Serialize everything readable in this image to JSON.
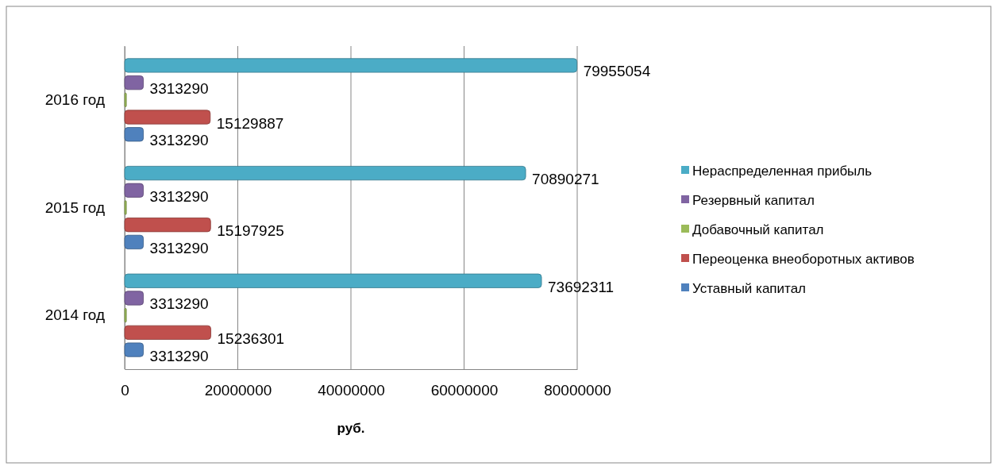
{
  "chart_data": {
    "type": "bar",
    "orientation": "horizontal",
    "xlabel": "руб.",
    "categories": [
      "2016 год",
      "2015 год",
      "2014 год"
    ],
    "series": [
      {
        "name": "Нераспределенная прибыль",
        "color": "#4bacc6",
        "values": [
          79955054,
          70890271,
          73692311
        ],
        "value_labels": [
          "79955054",
          "70890271",
          "73692311"
        ]
      },
      {
        "name": "Резервный капитал",
        "color": "#8064a2",
        "values": [
          3313290,
          3313290,
          3313290
        ],
        "value_labels": [
          "3313290",
          "3313290",
          "3313290"
        ]
      },
      {
        "name": "Добавочный капитал",
        "color": "#9bbb59",
        "values": [
          300000,
          300000,
          300000
        ],
        "value_labels": [
          null,
          null,
          null
        ]
      },
      {
        "name": "Переоценка внеоборотных активов",
        "color": "#c0504d",
        "values": [
          15129887,
          15197925,
          15236301
        ],
        "value_labels": [
          "15129887",
          "15197925",
          "15236301"
        ]
      },
      {
        "name": "Уставный капитал",
        "color": "#4f81bd",
        "values": [
          3313290,
          3313290,
          3313290
        ],
        "value_labels": [
          "3313290",
          "3313290",
          "3313290"
        ]
      }
    ],
    "xlim": [
      0,
      80000000
    ],
    "xticks": [
      0,
      20000000,
      40000000,
      60000000,
      80000000
    ],
    "grid": "x",
    "legend": "right"
  }
}
